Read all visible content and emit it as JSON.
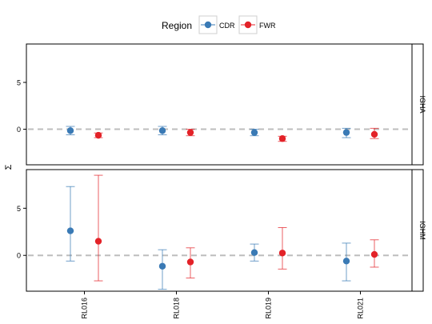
{
  "chart_data": {
    "type": "scatter",
    "subtype": "point-range with error bars, faceted",
    "legend": {
      "title": "Region",
      "placement": "top",
      "entries": [
        {
          "name": "CDR",
          "color": "#3a7ab5"
        },
        {
          "name": "FWR",
          "color": "#e32228"
        }
      ]
    },
    "ylabel": "Σ",
    "xlabel": "",
    "categories": [
      "RL016",
      "RL018",
      "RL019",
      "RL021"
    ],
    "y_ticks": [
      0,
      5
    ],
    "reference_line": 0,
    "grid": false,
    "facets": [
      {
        "label": "IGHA",
        "ylim": [
          -3.8,
          9.1
        ],
        "series": [
          {
            "name": "CDR",
            "color": "#3a7ab5",
            "y": [
              -0.15,
              -0.15,
              -0.35,
              -0.35
            ],
            "lower": [
              -0.6,
              -0.6,
              -0.7,
              -0.9
            ],
            "upper": [
              0.3,
              0.3,
              0.0,
              0.1
            ]
          },
          {
            "name": "FWR",
            "color": "#e32228",
            "y": [
              -0.65,
              -0.35,
              -1.0,
              -0.55
            ],
            "lower": [
              -0.9,
              -0.7,
              -1.3,
              -1.0
            ],
            "upper": [
              -0.4,
              0.0,
              -0.75,
              0.1
            ]
          }
        ]
      },
      {
        "label": "IGHM",
        "ylim": [
          -3.8,
          9.1
        ],
        "series": [
          {
            "name": "CDR",
            "color": "#3a7ab5",
            "y": [
              2.6,
              -1.15,
              0.3,
              -0.6
            ],
            "lower": [
              -0.6,
              -3.6,
              -0.6,
              -2.7
            ],
            "upper": [
              7.3,
              0.6,
              1.2,
              1.3
            ]
          },
          {
            "name": "FWR",
            "color": "#e32228",
            "y": [
              1.5,
              -0.7,
              0.25,
              0.1
            ],
            "lower": [
              -2.7,
              -2.4,
              -1.45,
              -1.25
            ],
            "upper": [
              8.5,
              0.8,
              2.95,
              1.65
            ]
          }
        ]
      }
    ]
  }
}
